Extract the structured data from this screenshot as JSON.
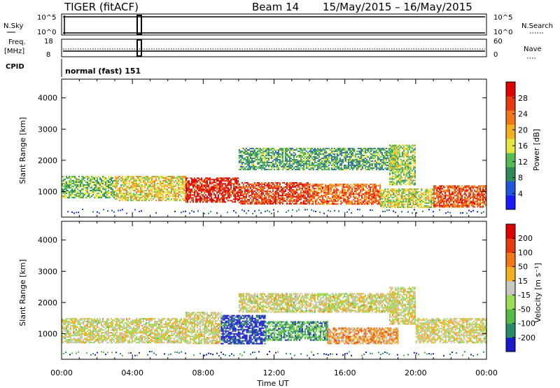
{
  "header": {
    "station": "TIGER (fitACF)",
    "beam": "Beam 14",
    "dates": "15/May/2015 – 16/May/2015"
  },
  "mini": {
    "nsky_label": "N.Sky",
    "nsearch_label": "N.Search",
    "nsky_ticks": [
      "10^5",
      "10^0"
    ],
    "freq_label_1": "Freq.",
    "freq_label_2": "[MHz]",
    "freq_ticks": [
      "18",
      "8"
    ],
    "nave_label": "Nave",
    "nave_ticks": [
      "60",
      "0"
    ],
    "cpid_label": "CPID",
    "cpid_value": "normal (fast) 151"
  },
  "chart_data": [
    {
      "type": "heatmap",
      "name": "Power",
      "ylabel": "Slant Range [km]",
      "xlabel": "Time UT",
      "yticks": [
        1000,
        2000,
        3000,
        4000
      ],
      "ylim": [
        180,
        4600
      ],
      "xticks": [
        "00:00",
        "04:00",
        "08:00",
        "12:00",
        "16:00",
        "20:00",
        "00:00"
      ],
      "xlim_hours": [
        0,
        24
      ],
      "colorbar": {
        "label": "Power [dB]",
        "ticks": [
          "28",
          "24",
          "20",
          "16",
          "12",
          "8",
          "4"
        ],
        "colors": [
          "#1a1aff",
          "#2255dd",
          "#2e8a5a",
          "#55bb55",
          "#e6e642",
          "#f0b020",
          "#f07818",
          "#e83a10",
          "#e00000"
        ]
      },
      "bands": [
        {
          "t": [
            0,
            3
          ],
          "r": [
            800,
            1500
          ],
          "level": 0.4
        },
        {
          "t": [
            3,
            7
          ],
          "r": [
            700,
            1500
          ],
          "level": 0.55
        },
        {
          "t": [
            7,
            10
          ],
          "r": [
            650,
            1450
          ],
          "level": 0.9
        },
        {
          "t": [
            10,
            14
          ],
          "r": [
            600,
            1300
          ],
          "level": 0.85
        },
        {
          "t": [
            14,
            18
          ],
          "r": [
            600,
            1250
          ],
          "level": 0.75
        },
        {
          "t": [
            18,
            21
          ],
          "r": [
            500,
            1100
          ],
          "level": 0.5
        },
        {
          "t": [
            21,
            24
          ],
          "r": [
            500,
            1200
          ],
          "level": 0.8
        },
        {
          "t": [
            10,
            19
          ],
          "r": [
            1700,
            2400
          ],
          "level": 0.35
        },
        {
          "t": [
            18.5,
            20
          ],
          "r": [
            1200,
            2500
          ],
          "level": 0.45
        }
      ]
    },
    {
      "type": "heatmap",
      "name": "Velocity",
      "ylabel": "Slant Range [km]",
      "xlabel": "Time UT",
      "yticks": [
        1000,
        2000,
        3000,
        4000
      ],
      "ylim": [
        180,
        4600
      ],
      "xticks": [
        "00:00",
        "04:00",
        "08:00",
        "12:00",
        "16:00",
        "20:00",
        "00:00"
      ],
      "xlim_hours": [
        0,
        24
      ],
      "colorbar": {
        "label": "Velocity [m s⁻¹]",
        "ticks": [
          "200",
          "100",
          "50",
          "15",
          "-15",
          "-50",
          "-100",
          "-200"
        ],
        "colors": [
          "#1a1acc",
          "#2a8a6a",
          "#55bb44",
          "#99dd55",
          "#c8c8c0",
          "#f0b020",
          "#f07818",
          "#e83a10",
          "#e00000"
        ]
      },
      "bands": [
        {
          "t": [
            0,
            7
          ],
          "r": [
            700,
            1500
          ],
          "level": 0.5
        },
        {
          "t": [
            7,
            9
          ],
          "r": [
            700,
            1700
          ],
          "level": 0.5
        },
        {
          "t": [
            9,
            11.5
          ],
          "r": [
            700,
            1600
          ],
          "level": 0.05
        },
        {
          "t": [
            11.5,
            15
          ],
          "r": [
            800,
            1400
          ],
          "level": 0.25
        },
        {
          "t": [
            15,
            19
          ],
          "r": [
            700,
            1200
          ],
          "level": 0.65
        },
        {
          "t": [
            10,
            19
          ],
          "r": [
            1700,
            2300
          ],
          "level": 0.5
        },
        {
          "t": [
            18.5,
            20
          ],
          "r": [
            1300,
            2500
          ],
          "level": 0.5
        },
        {
          "t": [
            20,
            24
          ],
          "r": [
            700,
            1500
          ],
          "level": 0.5
        }
      ]
    }
  ]
}
